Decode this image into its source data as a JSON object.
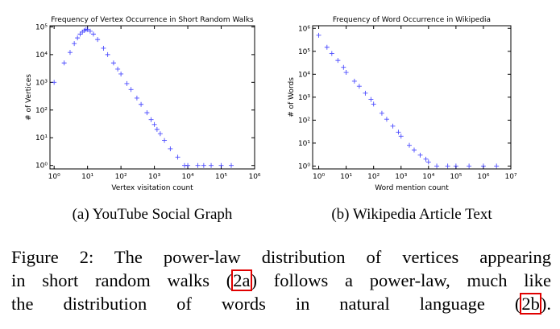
{
  "chart_data": [
    {
      "type": "scatter",
      "title": "Frequency of Vertex Occurrence in Short Random Walks",
      "xlabel": "Vertex visitation count",
      "ylabel": "# of Vertices",
      "caption": "(a) YouTube Social Graph",
      "xscale": "log",
      "yscale": "log",
      "marker": "+",
      "color": "#0000ff",
      "grid": false,
      "xlim": [
        0.75,
        1000000
      ],
      "ylim": [
        0.75,
        110000
      ],
      "xticks": [
        {
          "value": 1,
          "label": "10⁰"
        },
        {
          "value": 10,
          "label": "10¹"
        },
        {
          "value": 100,
          "label": "10²"
        },
        {
          "value": 1000,
          "label": "10³"
        },
        {
          "value": 10000,
          "label": "10⁴"
        },
        {
          "value": 100000,
          "label": "10⁵"
        },
        {
          "value": 1000000,
          "label": "10⁶"
        }
      ],
      "yticks": [
        {
          "value": 1,
          "label": "10⁰"
        },
        {
          "value": 10,
          "label": "10¹"
        },
        {
          "value": 100,
          "label": "10²"
        },
        {
          "value": 1000,
          "label": "10³"
        },
        {
          "value": 10000,
          "label": "10⁴"
        },
        {
          "value": 100000,
          "label": "10⁵"
        }
      ],
      "x": [
        1,
        2,
        3,
        4,
        5,
        6,
        7,
        8,
        9,
        10,
        12,
        15,
        20,
        30,
        40,
        60,
        80,
        100,
        150,
        200,
        300,
        400,
        600,
        800,
        1000,
        1200,
        1500,
        2000,
        3000,
        5000,
        8000,
        10000,
        20000,
        30000,
        50000,
        100000,
        200000
      ],
      "y": [
        1000,
        5000,
        12000,
        25000,
        40000,
        55000,
        65000,
        75000,
        80000,
        80000,
        70000,
        55000,
        35000,
        17000,
        10000,
        5000,
        3000,
        2000,
        900,
        550,
        270,
        160,
        80,
        45,
        30,
        20,
        14,
        8,
        4,
        2,
        1,
        1,
        1,
        1,
        1,
        1,
        1
      ]
    },
    {
      "type": "scatter",
      "title": "Frequency of Word Occurrence in Wikipedia",
      "xlabel": "Word mention count",
      "ylabel": "# of Words",
      "caption": "(b) Wikipedia Article Text",
      "xscale": "log",
      "yscale": "log",
      "marker": "+",
      "color": "#0000ff",
      "grid": false,
      "xlim": [
        0.6,
        10000000
      ],
      "ylim": [
        0.75,
        1300000
      ],
      "xticks": [
        {
          "value": 1,
          "label": "10⁰"
        },
        {
          "value": 10,
          "label": "10¹"
        },
        {
          "value": 100,
          "label": "10²"
        },
        {
          "value": 1000,
          "label": "10³"
        },
        {
          "value": 10000,
          "label": "10⁴"
        },
        {
          "value": 100000,
          "label": "10⁵"
        },
        {
          "value": 1000000,
          "label": "10⁶"
        },
        {
          "value": 10000000,
          "label": "10⁷"
        }
      ],
      "yticks": [
        {
          "value": 1,
          "label": "10⁰"
        },
        {
          "value": 10,
          "label": "10¹"
        },
        {
          "value": 100,
          "label": "10²"
        },
        {
          "value": 1000,
          "label": "10³"
        },
        {
          "value": 10000,
          "label": "10⁴"
        },
        {
          "value": 100000,
          "label": "10⁵"
        },
        {
          "value": 1000000,
          "label": "10⁶"
        }
      ],
      "x": [
        1,
        2,
        3,
        5,
        8,
        10,
        20,
        30,
        50,
        80,
        100,
        200,
        300,
        500,
        800,
        1000,
        2000,
        3000,
        5000,
        8000,
        10000,
        20000,
        50000,
        100000,
        300000,
        1000000,
        3000000
      ],
      "y": [
        500000,
        150000,
        80000,
        40000,
        20000,
        12000,
        5000,
        3000,
        1500,
        800,
        500,
        200,
        110,
        55,
        30,
        20,
        8,
        5,
        3,
        2,
        1.5,
        1,
        1,
        1,
        1,
        1,
        1
      ]
    }
  ],
  "figure_caption": [
    [
      "Figure 2: The power-law distribution of vertices appearing"
    ],
    [
      "in short random walks (",
      "2a",
      ") follows a power-law, much like"
    ],
    [
      "the distribution of words in natural language (",
      "2b",
      ")."
    ]
  ]
}
